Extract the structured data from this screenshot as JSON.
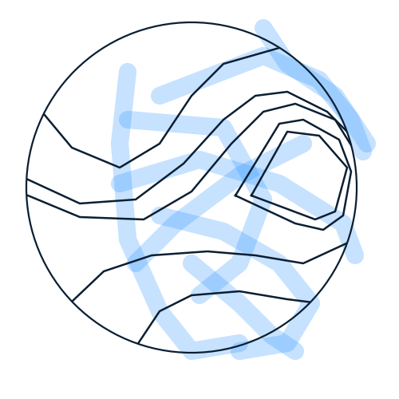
{
  "chart_data": {
    "type": "line",
    "tick_labels": false,
    "grid": false,
    "xlim": [
      0,
      500
    ],
    "ylim": [
      500,
      0
    ],
    "series": [
      {
        "type": "line",
        "color": "#3399ff",
        "line_style": "solid",
        "x": [
          160,
          150,
          160,
          200,
          240,
          300
        ],
        "y": [
          90,
          180,
          300,
          390,
          440,
          430
        ]
      },
      {
        "type": "line",
        "color": "#3399ff",
        "line_style": "solid",
        "x": [
          200,
          330,
          400,
          440,
          455
        ],
        "y": [
          120,
          70,
          100,
          150,
          190
        ]
      },
      {
        "type": "line",
        "color": "#3399ff",
        "line_style": "solid",
        "x": [
          150,
          250,
          350,
          430,
          445
        ],
        "y": [
          230,
          200,
          230,
          280,
          320
        ]
      },
      {
        "type": "line",
        "color": "#3399ff",
        "line_style": "solid",
        "x": [
          160,
          280,
          330,
          300,
          250
        ],
        "y": [
          150,
          160,
          250,
          330,
          370
        ]
      },
      {
        "type": "line",
        "color": "#3399ff",
        "line_style": "solid",
        "x": [
          330,
          360,
          420,
          460
        ],
        "y": [
          35,
          80,
          120,
          180
        ]
      },
      {
        "type": "line",
        "color": "#3399ff",
        "line_style": "solid",
        "x": [
          200,
          280,
          350,
          390,
          360,
          300
        ],
        "y": [
          270,
          290,
          330,
          380,
          430,
          440
        ]
      },
      {
        "type": "line",
        "color": "#3399ff",
        "line_style": "solid",
        "x": [
          240,
          300,
          340,
          370
        ],
        "y": [
          330,
          380,
          420,
          440
        ]
      },
      {
        "type": "line",
        "color": "#3399ff",
        "line_style": "solid",
        "x": [
          170,
          220,
          300,
          380
        ],
        "y": [
          330,
          280,
          220,
          180
        ]
      },
      {
        "type": "line",
        "color": "#0b1f33",
        "line_style": "solid",
        "x": [
          55,
          90,
          150,
          200,
          240,
          280,
          350
        ],
        "y": [
          143,
          185,
          210,
          180,
          120,
          80,
          60
        ]
      },
      {
        "type": "line",
        "color": "#0b1f33",
        "line_style": "solid",
        "x": [
          35,
          100,
          170,
          230,
          280,
          320,
          360,
          410,
          440,
          447
        ],
        "y": [
          225,
          255,
          250,
          205,
          150,
          120,
          115,
          140,
          170,
          200
        ]
      },
      {
        "type": "line",
        "color": "#0b1f33",
        "line_style": "solid",
        "x": [
          35,
          100,
          180,
          240,
          290,
          330,
          370,
          420,
          445,
          448
        ],
        "y": [
          245,
          272,
          275,
          240,
          180,
          140,
          130,
          150,
          190,
          230
        ]
      },
      {
        "type": "line",
        "color": "#0b1f33",
        "line_style": "solid",
        "x": [
          295,
          350,
          380,
          425,
          440,
          430,
          405,
          370,
          295
        ],
        "y": [
          245,
          155,
          150,
          175,
          215,
          270,
          288,
          280,
          245
        ]
      },
      {
        "type": "line",
        "color": "#0b1f33",
        "line_style": "solid",
        "x": [
          315,
          360,
          400,
          435,
          420,
          395,
          315
        ],
        "y": [
          245,
          165,
          170,
          210,
          265,
          275,
          245
        ]
      },
      {
        "type": "line",
        "color": "#0b1f33",
        "line_style": "solid",
        "x": [
          90,
          130,
          190,
          260,
          320,
          380,
          445
        ],
        "y": [
          378,
          340,
          320,
          315,
          320,
          330,
          300
        ]
      },
      {
        "type": "line",
        "color": "#0b1f33",
        "line_style": "solid",
        "x": [
          172,
          200,
          240,
          300,
          360,
          400,
          430
        ],
        "y": [
          432,
          390,
          370,
          365,
          375,
          380,
          330
        ]
      }
    ]
  }
}
